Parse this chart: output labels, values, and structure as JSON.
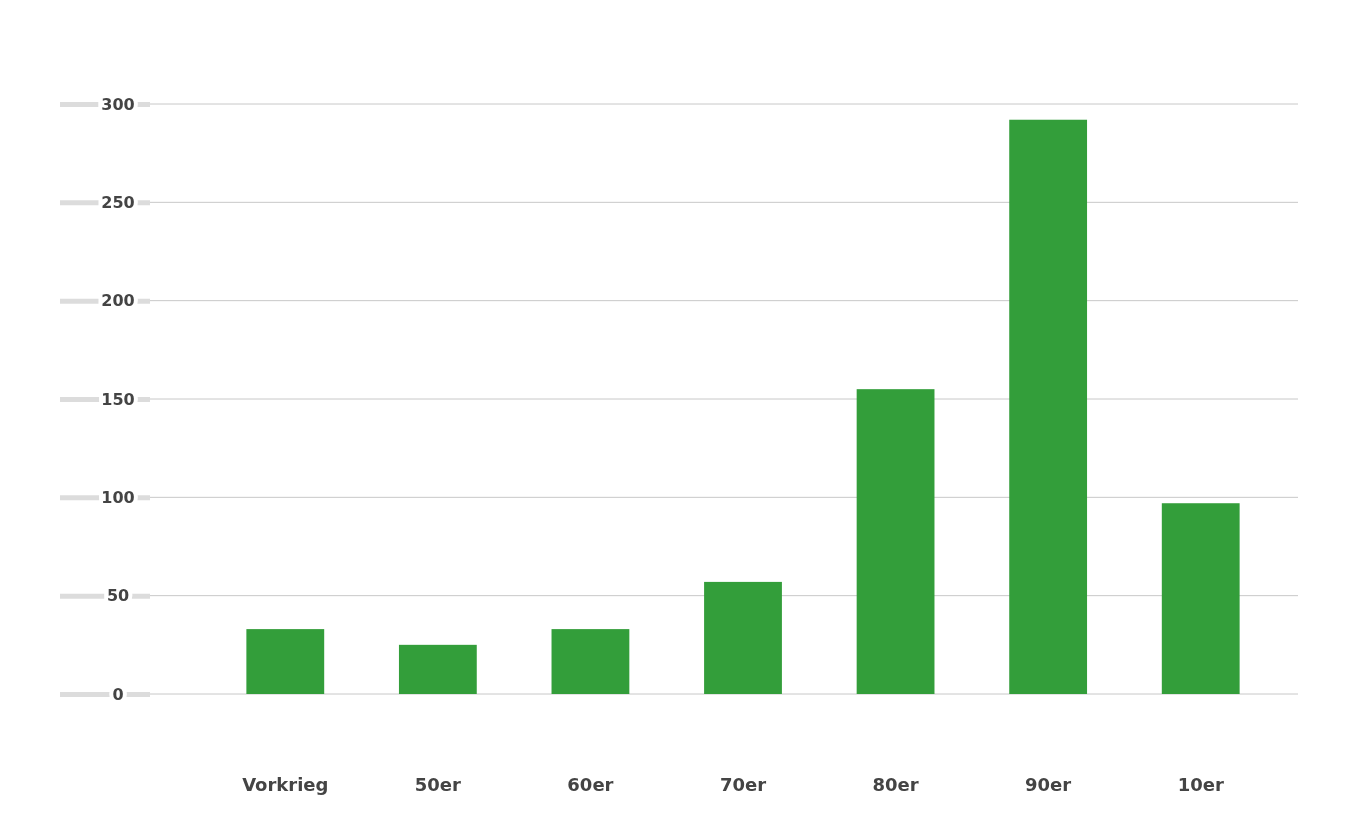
{
  "chart_data": {
    "type": "bar",
    "categories": [
      "Vorkrieg",
      "50er",
      "60er",
      "70er",
      "80er",
      "90er",
      "10er"
    ],
    "values": [
      33,
      25,
      33,
      57,
      155,
      292,
      97
    ],
    "color": "#339e3a",
    "ylim": [
      0,
      300
    ],
    "yticks": [
      0,
      50,
      100,
      150,
      200,
      250,
      300
    ],
    "grid": "y"
  }
}
